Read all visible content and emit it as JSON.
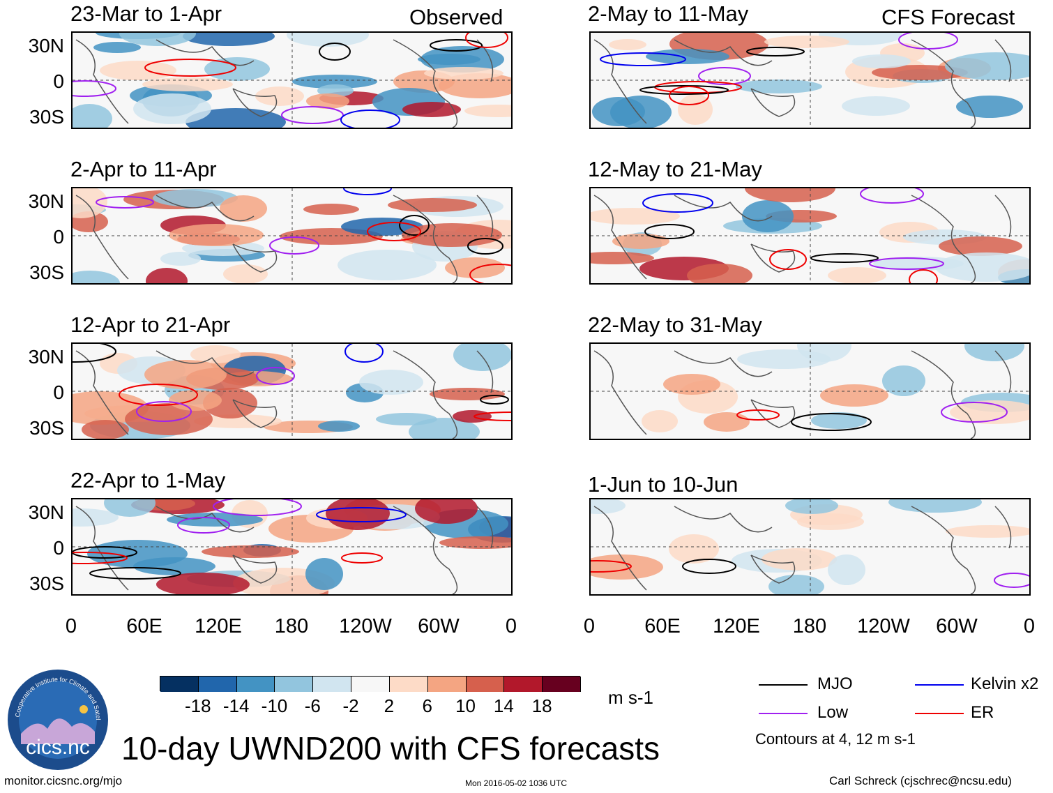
{
  "chart_data": {
    "type": "heatmap",
    "title": "10-day UWND200 with CFS forecasts",
    "variable": "200-hPa zonal wind anomaly",
    "units": "m s-1",
    "column_labels": [
      "Observed",
      "CFS Forecast"
    ],
    "panels": [
      {
        "id": "obs1",
        "title": "23-Mar to 1-Apr",
        "group": "Observed"
      },
      {
        "id": "obs2",
        "title": "2-Apr to 11-Apr",
        "group": "Observed"
      },
      {
        "id": "obs3",
        "title": "12-Apr to 21-Apr",
        "group": "Observed"
      },
      {
        "id": "obs4",
        "title": "22-Apr to 1-May",
        "group": "Observed"
      },
      {
        "id": "fc1",
        "title": "2-May to 11-May",
        "group": "CFS Forecast"
      },
      {
        "id": "fc2",
        "title": "12-May to 21-May",
        "group": "CFS Forecast"
      },
      {
        "id": "fc3",
        "title": "22-May to 31-May",
        "group": "CFS Forecast"
      },
      {
        "id": "fc4",
        "title": "1-Jun to 10-Jun",
        "group": "CFS Forecast"
      }
    ],
    "y_ticks": [
      "30N",
      "0",
      "30S"
    ],
    "x_ticks": [
      "0",
      "60E",
      "120E",
      "180",
      "120W",
      "60W",
      "0"
    ],
    "colorbar": {
      "ticks": [
        "-18",
        "-14",
        "-10",
        "-6",
        "-2",
        "2",
        "6",
        "10",
        "14",
        "18"
      ],
      "colors": [
        "#053061",
        "#2166ac",
        "#4393c3",
        "#92c5de",
        "#d1e5f0",
        "#f7f7f7",
        "#fddbc7",
        "#f4a582",
        "#d6604d",
        "#b2182b",
        "#67001f"
      ]
    },
    "legend": [
      {
        "label": "MJO",
        "color": "#000000"
      },
      {
        "label": "Kelvin x2",
        "color": "#0000ee"
      },
      {
        "label": "Low",
        "color": "#a020f0"
      },
      {
        "label": "ER",
        "color": "#ee0000"
      }
    ],
    "contour_note": "Contours at 4, 12 m s-1"
  },
  "logo_text": "cics.nc",
  "logo_ring_text": "Cooperative Institute for Climate and Satellites",
  "footer": {
    "left": "monitor.cicsnc.org/mjo",
    "center": "Mon 2016-05-02 1036 UTC",
    "right": "Carl Schreck (cjschrec@ncsu.edu)"
  }
}
